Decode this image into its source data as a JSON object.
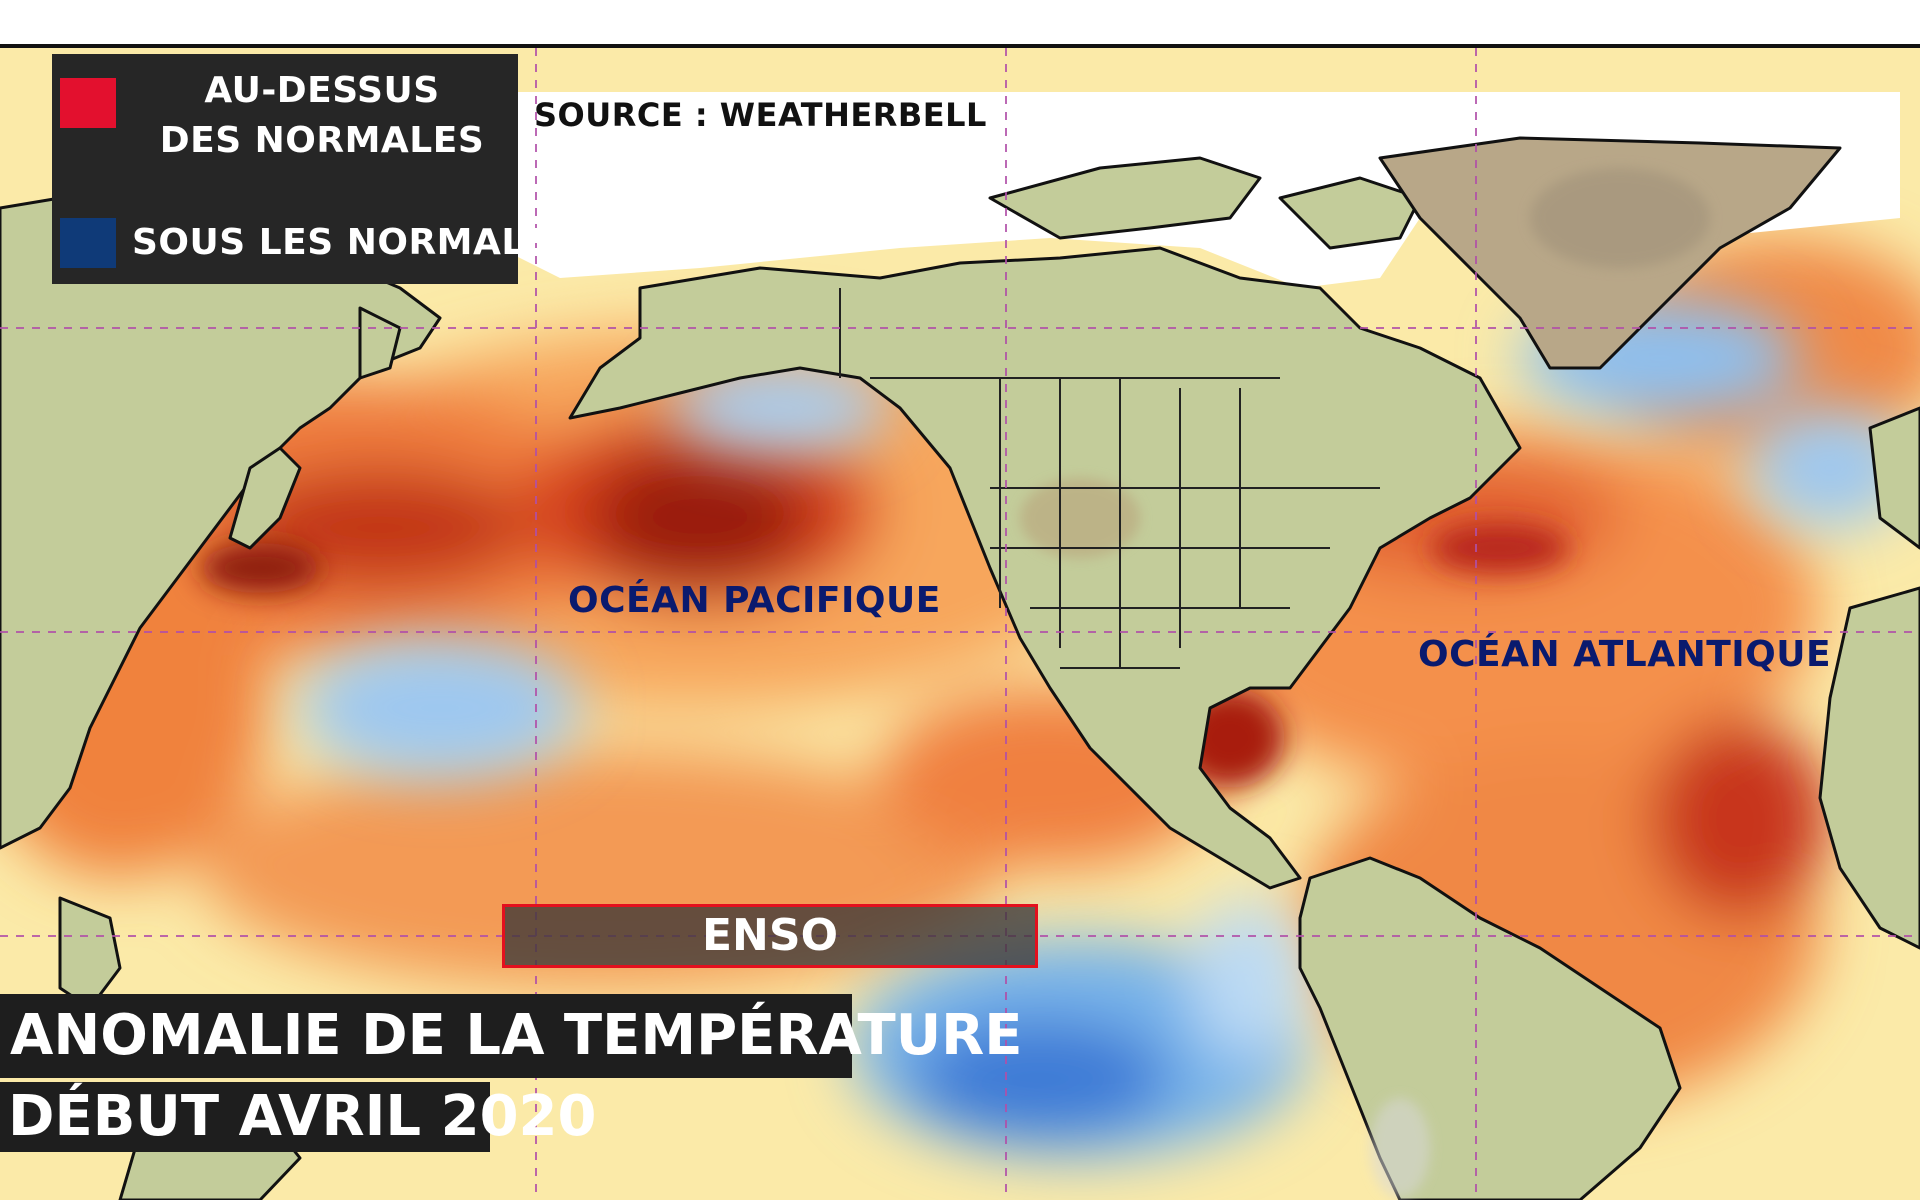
{
  "map": {
    "source": "SOURCE : WEATHERBELL",
    "legend": [
      {
        "label_line1": "AU-DESSUS",
        "label_line2": "DES NORMALES",
        "color": "#e3102e"
      },
      {
        "label": "SOUS LES NORMALES",
        "color": "#0f3a78"
      }
    ],
    "ocean_labels": {
      "pacific": "OCÉAN PACIFIQUE",
      "atlantic": "OCÉAN ATLANTIQUE"
    },
    "region_label": "ENSO",
    "title_line1": "ANOMALIE DE LA TEMPÉRATURE",
    "title_line2": "DÉBUT AVRIL 2020",
    "colors": {
      "land": "#c2cb98",
      "greenland": "#b9a98a",
      "sea_ice": "#ffffff",
      "warm_light": "#fbe9a4",
      "warm": "#f6a25a",
      "hot": "#e85a28",
      "very_hot": "#a8200e",
      "cool": "#79b6ea",
      "cold": "#2f6fd0",
      "enso_border": "#e3101e",
      "text_dark_blue": "#0a1a6e"
    }
  }
}
